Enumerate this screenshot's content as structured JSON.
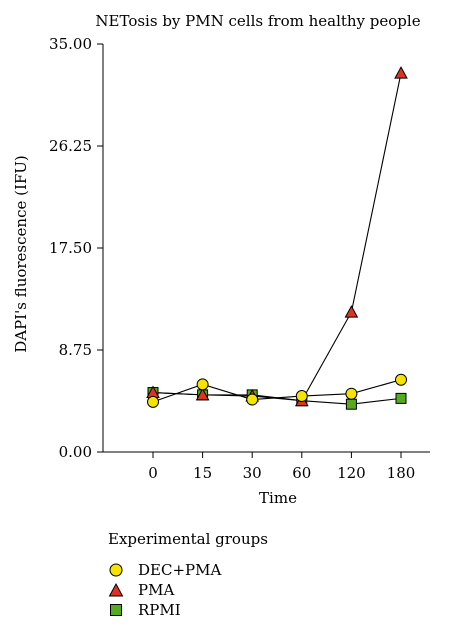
{
  "chart_data": {
    "type": "line",
    "title": "NETosis by PMN cells from healthy people",
    "xlabel": "Time",
    "ylabel": "DAPI's fluorescence (IFU)",
    "categories": [
      "0",
      "15",
      "30",
      "60",
      "120",
      "180"
    ],
    "y_ticks": [
      "0.00",
      "8.75",
      "17.50",
      "26.25",
      "35.00"
    ],
    "ylim": [
      0,
      35
    ],
    "grid": false,
    "legend_title": "Experimental groups",
    "legend_position": "bottom-left",
    "series": [
      {
        "name": "DEC+PMA",
        "marker": "circle",
        "color": "#f5e400",
        "values": [
          4.3,
          5.8,
          4.5,
          4.8,
          5.0,
          6.2
        ]
      },
      {
        "name": "PMA",
        "marker": "triangle",
        "color": "#dd3322",
        "values": [
          5.1,
          4.9,
          4.8,
          4.4,
          12.0,
          32.5
        ]
      },
      {
        "name": "RPMI",
        "marker": "square",
        "color": "#55aa22",
        "values": [
          5.1,
          4.9,
          4.9,
          4.4,
          4.1,
          4.6
        ]
      }
    ]
  }
}
